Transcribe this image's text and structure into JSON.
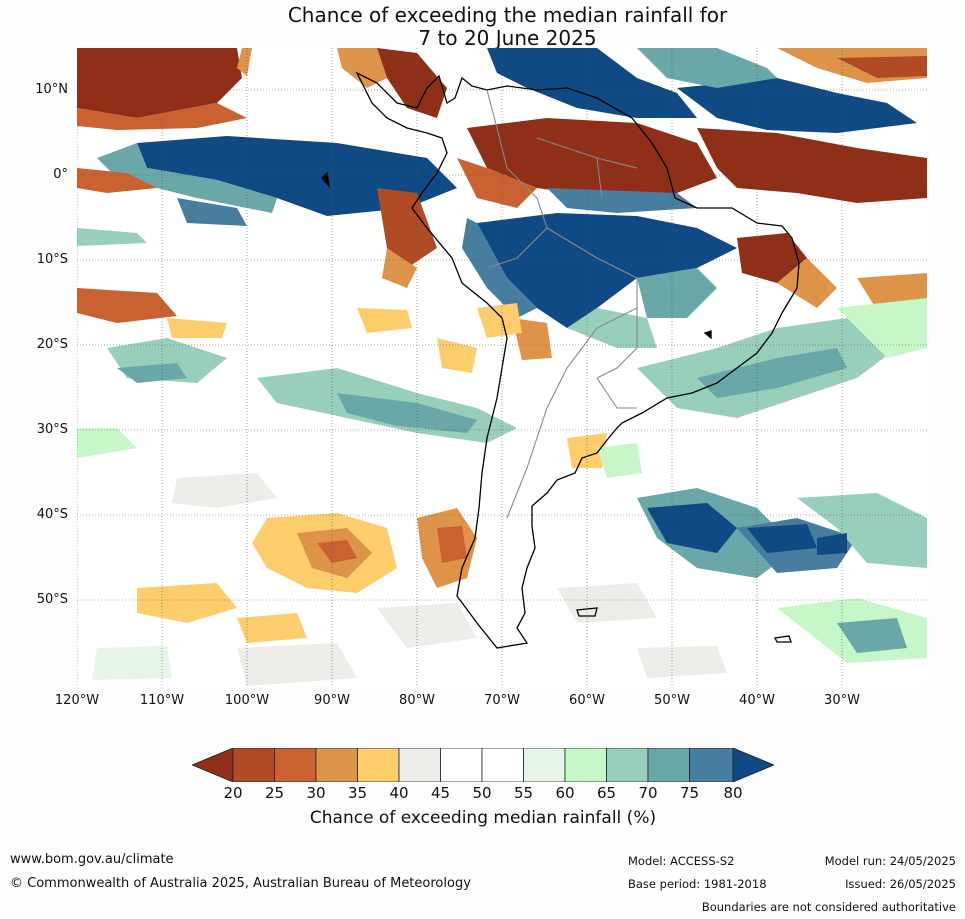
{
  "title_line1": "Chance of exceeding the median rainfall for",
  "title_line2": "7 to 20 June 2025",
  "lat_labels": [
    "10°N",
    "0°",
    "10°S",
    "20°S",
    "30°S",
    "40°S",
    "50°S"
  ],
  "lon_labels": [
    "120°W",
    "110°W",
    "100°W",
    "90°W",
    "80°W",
    "70°W",
    "60°W",
    "50°W",
    "40°W",
    "30°W"
  ],
  "colorbar": {
    "ticks": [
      "20",
      "25",
      "30",
      "35",
      "40",
      "45",
      "50",
      "55",
      "60",
      "65",
      "70",
      "75",
      "80"
    ],
    "colors": [
      "#8f2f17",
      "#b04b26",
      "#c96130",
      "#de9448",
      "#fdcc6b",
      "#eeece9",
      "#ffffff",
      "#ffffff",
      "#e7f5e8",
      "#c5f7c9",
      "#98cfba",
      "#6aa7a8",
      "#477d9f",
      "#0f4a84"
    ],
    "label": "Chance of exceeding median rainfall (%)"
  },
  "footer": {
    "website": "www.bom.gov.au/climate",
    "copyright": "© Commonwealth of Australia 2025, Australian Bureau of Meteorology",
    "model": "Model: ACCESS-S2",
    "model_run": "Model run: 24/05/2025",
    "base_period": "Base period: 1981-2018",
    "issued": "Issued: 26/05/2025",
    "boundaries_note": "Boundaries are not considered authoritative"
  }
}
